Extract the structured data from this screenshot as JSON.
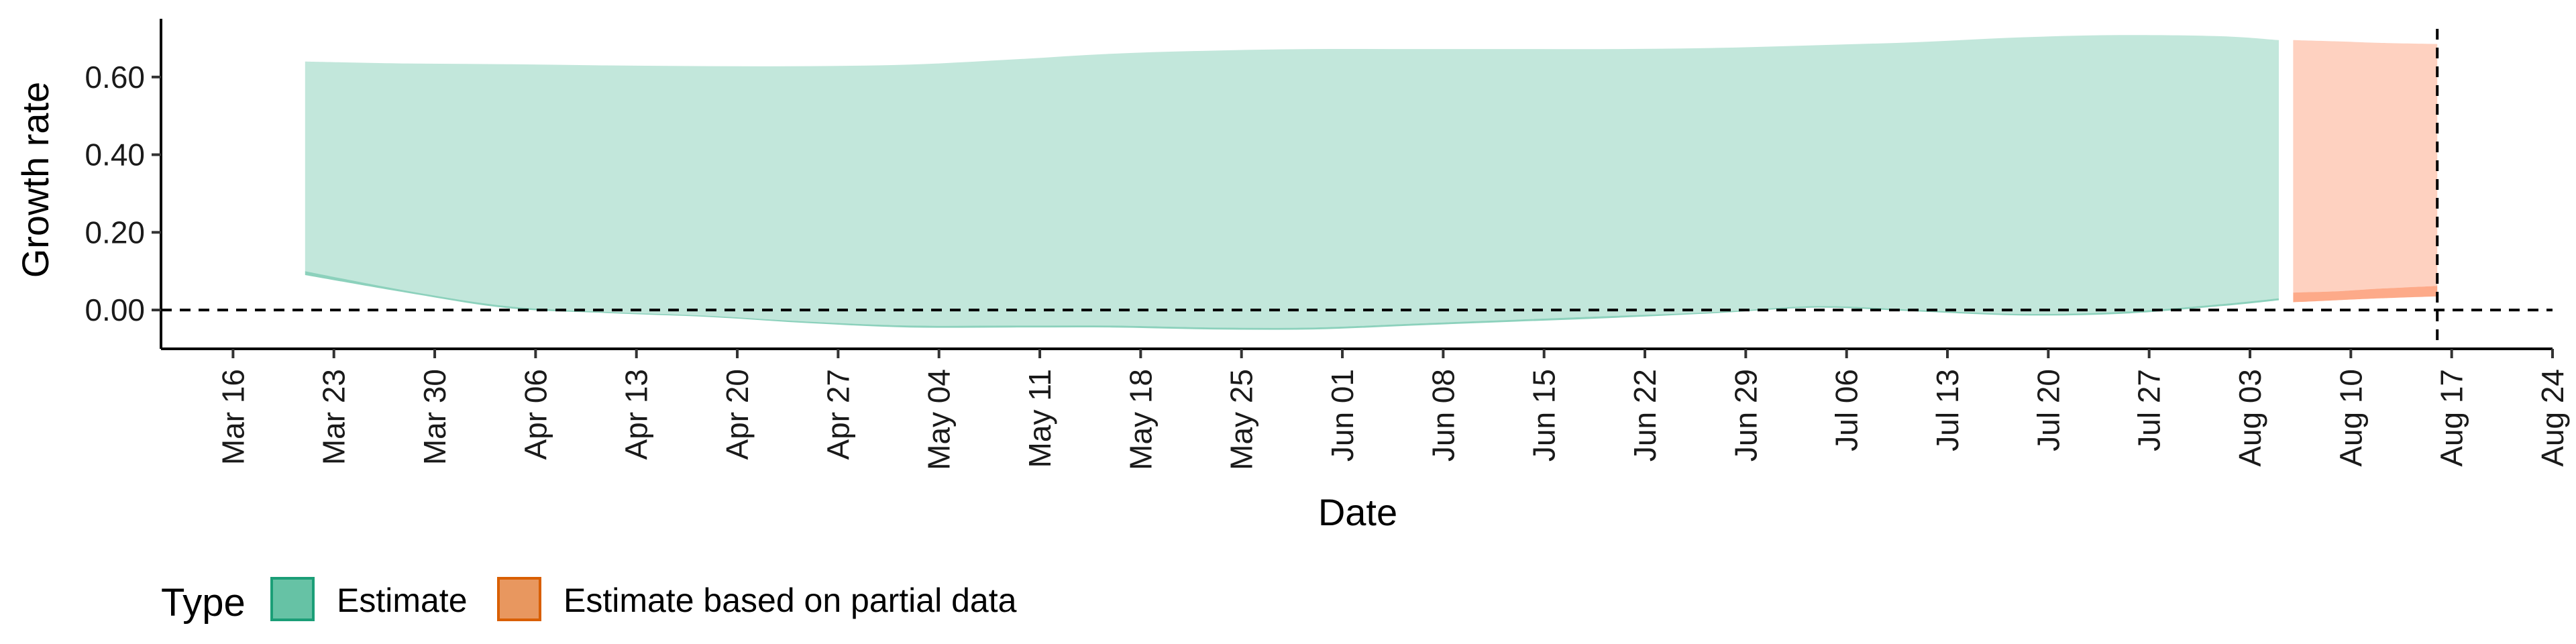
{
  "chart_data": {
    "type": "area",
    "xlabel": "Date",
    "ylabel": "Growth rate",
    "x_ticks": [
      "Mar 16",
      "Mar 23",
      "Mar 30",
      "Apr 06",
      "Apr 13",
      "Apr 20",
      "Apr 27",
      "May 04",
      "May 11",
      "May 18",
      "May 25",
      "Jun 01",
      "Jun 08",
      "Jun 15",
      "Jun 22",
      "Jun 29",
      "Jul 06",
      "Jul 13",
      "Jul 20",
      "Jul 27",
      "Aug 03",
      "Aug 10",
      "Aug 17",
      "Aug 24"
    ],
    "y_ticks": [
      "0.00",
      "0.20",
      "0.40",
      "0.60"
    ],
    "ylim": [
      -0.1,
      0.75
    ],
    "xlim": [
      "2020-03-11",
      "2020-08-24"
    ],
    "reference_lines": {
      "hline_y": 0,
      "vline_date": "2020-08-16"
    },
    "legend": {
      "title": "Type",
      "position": "bottom-left",
      "entries": [
        {
          "label": "Estimate",
          "color": "#66c2a5"
        },
        {
          "label": "Estimate based on partial data",
          "color": "#fc8d62"
        }
      ]
    },
    "series": [
      {
        "name": "Estimate",
        "color": "#66c2a5",
        "bands": [
          {
            "x": [
              "2020-03-21",
              "2020-03-28",
              "2020-04-04",
              "2020-04-11",
              "2020-04-18",
              "2020-04-25",
              "2020-05-02",
              "2020-05-09",
              "2020-05-16",
              "2020-05-23",
              "2020-05-30",
              "2020-06-06",
              "2020-06-13",
              "2020-06-20",
              "2020-06-27",
              "2020-07-04",
              "2020-07-11",
              "2020-07-18",
              "2020-07-25",
              "2020-08-01",
              "2020-08-05"
            ],
            "lower": [
              0.1,
              0.05,
              0.01,
              -0.005,
              -0.015,
              -0.03,
              -0.04,
              -0.04,
              -0.04,
              -0.045,
              -0.045,
              -0.035,
              -0.025,
              -0.015,
              -0.005,
              0.01,
              0.0,
              -0.01,
              -0.005,
              0.015,
              0.03
            ],
            "upper": [
              0.64,
              0.635,
              0.633,
              0.63,
              0.628,
              0.628,
              0.632,
              0.645,
              0.66,
              0.668,
              0.672,
              0.672,
              0.672,
              0.672,
              0.675,
              0.682,
              0.69,
              0.702,
              0.708,
              0.705,
              0.695
            ]
          },
          {
            "x": [
              "2020-03-21",
              "2020-03-28",
              "2020-04-04",
              "2020-04-11",
              "2020-04-18",
              "2020-04-25",
              "2020-05-02",
              "2020-05-09",
              "2020-05-16",
              "2020-05-23",
              "2020-05-30",
              "2020-06-06",
              "2020-06-13",
              "2020-06-20",
              "2020-06-27",
              "2020-07-04",
              "2020-07-11",
              "2020-07-18",
              "2020-07-25",
              "2020-08-01",
              "2020-08-05"
            ],
            "lower": [
              0.09,
              0.045,
              0.005,
              -0.008,
              -0.018,
              -0.034,
              -0.045,
              -0.045,
              -0.045,
              -0.05,
              -0.05,
              -0.04,
              -0.03,
              -0.02,
              -0.008,
              0.006,
              -0.004,
              -0.014,
              -0.01,
              0.01,
              0.025
            ],
            "upper": [
              0.1,
              0.05,
              0.01,
              -0.005,
              -0.015,
              -0.03,
              -0.04,
              -0.04,
              -0.04,
              -0.045,
              -0.045,
              -0.035,
              -0.025,
              -0.015,
              -0.005,
              0.01,
              0.0,
              -0.01,
              -0.005,
              0.015,
              0.03
            ]
          }
        ]
      },
      {
        "name": "Estimate based on partial data",
        "color": "#fc8d62",
        "bands": [
          {
            "x": [
              "2020-08-06",
              "2020-08-09",
              "2020-08-12",
              "2020-08-16"
            ],
            "lower": [
              0.045,
              0.048,
              0.055,
              0.062
            ],
            "upper": [
              0.695,
              0.692,
              0.688,
              0.685
            ]
          },
          {
            "x": [
              "2020-08-06",
              "2020-08-09",
              "2020-08-12",
              "2020-08-16"
            ],
            "lower": [
              0.02,
              0.025,
              0.03,
              0.035
            ],
            "upper": [
              0.045,
              0.048,
              0.055,
              0.062
            ]
          }
        ]
      }
    ]
  }
}
